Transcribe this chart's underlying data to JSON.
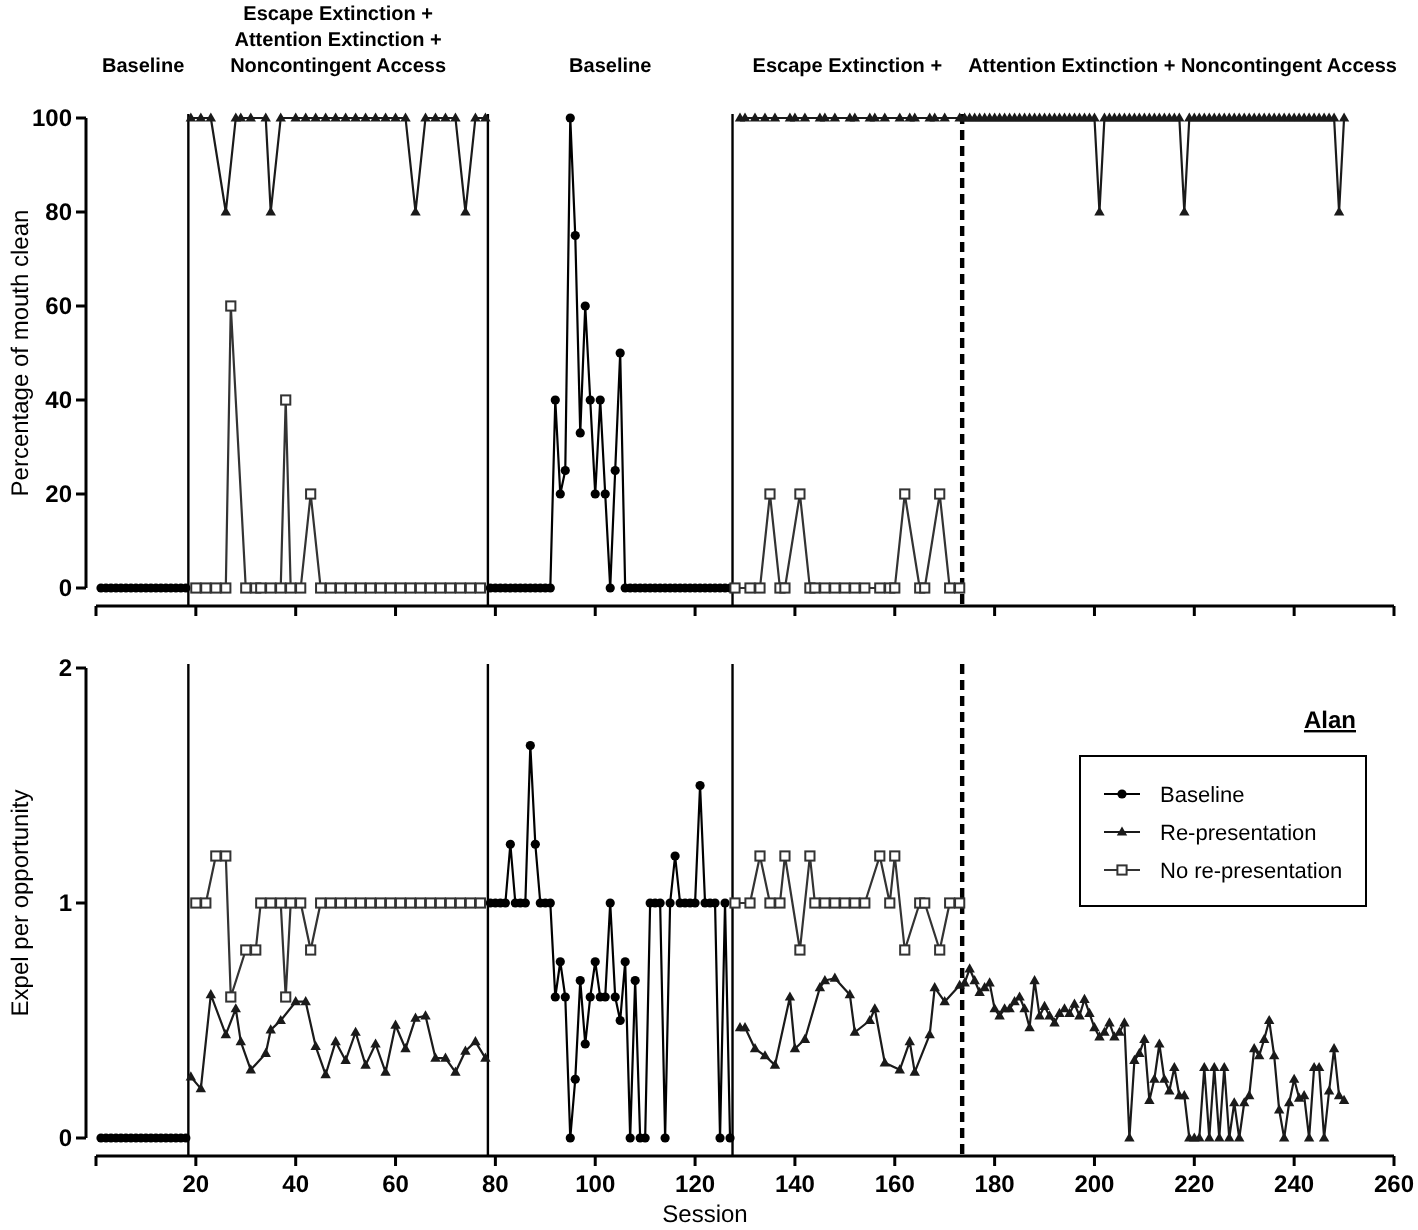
{
  "chart_data": [
    {
      "type": "line",
      "ylabel": "Percentage of mouth clean",
      "xlim": [
        0,
        260
      ],
      "xticks": [
        {
          "value": 0,
          "label": null
        },
        20,
        40,
        60,
        80,
        100,
        120,
        140,
        160,
        180,
        200,
        220,
        240,
        260
      ],
      "ylim": [
        0,
        100
      ],
      "yticks": [
        0,
        20,
        40,
        60,
        80,
        100
      ],
      "tick_labels": "y",
      "annotations": [
        "Baseline",
        "Escape Extinction +\nAttention Extinction +\nNoncontingent Access",
        "Baseline",
        "Escape Extinction +",
        "Attention Extinction + Noncontingent Access"
      ],
      "ref_lines": [
        {
          "axis": "x",
          "value": 18.5
        },
        {
          "axis": "x",
          "value": 78.5
        },
        {
          "axis": "x",
          "value": 127.5
        },
        {
          "axis": "x",
          "value": 173.5,
          "line_style": "dashed"
        }
      ],
      "series": [
        {
          "color": "#000000",
          "marker": "circle",
          "x": [
            1,
            2,
            3,
            4,
            5,
            6,
            7,
            8,
            9,
            10,
            11,
            12,
            13,
            14,
            15,
            16,
            17,
            18,
            50,
            79,
            80,
            81,
            82,
            83,
            84,
            85,
            86,
            87,
            88,
            89,
            90,
            91,
            92,
            93,
            94,
            95,
            96,
            97,
            98,
            99,
            100,
            101,
            102,
            103,
            104,
            105,
            106,
            107,
            108,
            109,
            110,
            111,
            112,
            113,
            114,
            115,
            116,
            117,
            118,
            119,
            120,
            121,
            122,
            123,
            124,
            125,
            126,
            127
          ],
          "values": [
            0,
            0,
            0,
            0,
            0,
            0,
            0,
            0,
            0,
            0,
            0,
            0,
            0,
            0,
            0,
            0,
            0,
            0,
            null,
            0,
            0,
            0,
            0,
            0,
            0,
            0,
            0,
            0,
            0,
            0,
            0,
            0,
            40,
            20,
            25,
            100,
            75,
            33,
            60,
            40,
            20,
            40,
            20,
            0,
            25,
            50,
            0,
            0,
            0,
            0,
            0,
            0,
            0,
            0,
            0,
            0,
            0,
            0,
            0,
            0,
            0,
            0,
            0,
            0,
            0,
            0,
            0,
            0
          ]
        },
        {
          "color": "#1a1a1a",
          "marker": "triangle",
          "x": [
            19,
            21,
            23,
            26,
            28,
            29,
            31,
            34,
            35,
            37,
            40,
            42,
            44,
            46,
            48,
            50,
            52,
            54,
            56,
            58,
            60,
            62,
            64,
            66,
            68,
            70,
            72,
            74,
            76,
            78,
            100,
            129,
            130,
            132,
            134,
            136,
            139,
            140,
            142,
            145,
            146,
            148,
            151,
            152,
            155,
            156,
            158,
            161,
            163,
            164,
            167,
            168,
            170,
            173,
            174,
            175,
            176,
            177,
            178,
            179,
            180,
            181,
            182,
            183,
            184,
            185,
            186,
            187,
            188,
            189,
            190,
            191,
            192,
            193,
            194,
            195,
            196,
            197,
            198,
            199,
            200,
            201,
            202,
            203,
            204,
            205,
            206,
            207,
            208,
            209,
            210,
            211,
            212,
            213,
            214,
            215,
            216,
            217,
            218,
            219,
            220,
            221,
            222,
            223,
            224,
            225,
            226,
            227,
            228,
            229,
            230,
            231,
            232,
            233,
            234,
            235,
            236,
            237,
            238,
            239,
            240,
            241,
            242,
            243,
            244,
            245,
            246,
            247,
            248,
            249,
            250
          ],
          "values": [
            100,
            100,
            100,
            80,
            100,
            100,
            100,
            100,
            80,
            100,
            100,
            100,
            100,
            100,
            100,
            100,
            100,
            100,
            100,
            100,
            100,
            100,
            80,
            100,
            100,
            100,
            100,
            80,
            100,
            100,
            null,
            100,
            100,
            100,
            100,
            100,
            100,
            100,
            100,
            100,
            100,
            100,
            100,
            100,
            100,
            100,
            100,
            100,
            100,
            100,
            100,
            100,
            100,
            100,
            100,
            100,
            100,
            100,
            100,
            100,
            100,
            100,
            100,
            100,
            100,
            100,
            100,
            100,
            100,
            100,
            100,
            100,
            100,
            100,
            100,
            100,
            100,
            100,
            100,
            100,
            100,
            80,
            100,
            100,
            100,
            100,
            100,
            100,
            100,
            100,
            100,
            100,
            100,
            100,
            100,
            100,
            100,
            100,
            80,
            100,
            100,
            100,
            100,
            100,
            100,
            100,
            100,
            100,
            100,
            100,
            100,
            100,
            100,
            100,
            100,
            100,
            100,
            100,
            100,
            100,
            100,
            100,
            100,
            100,
            100,
            100,
            100,
            100,
            100,
            80,
            100
          ]
        },
        {
          "color": "#333333",
          "marker": "square",
          "x": [
            20,
            22,
            24,
            26,
            27,
            30,
            32,
            33,
            35,
            37,
            38,
            39,
            41,
            43,
            45,
            47,
            49,
            51,
            53,
            55,
            57,
            59,
            61,
            63,
            65,
            67,
            69,
            71,
            73,
            75,
            77,
            100,
            128,
            131,
            133,
            135,
            137,
            138,
            141,
            143,
            144,
            146,
            148,
            150,
            152,
            154,
            157,
            159,
            160,
            162,
            165,
            166,
            169,
            171,
            173
          ],
          "values": [
            0,
            0,
            0,
            0,
            60,
            0,
            0,
            0,
            0,
            0,
            40,
            0,
            0,
            20,
            0,
            0,
            0,
            0,
            0,
            0,
            0,
            0,
            0,
            0,
            0,
            0,
            0,
            0,
            0,
            0,
            0,
            null,
            0,
            0,
            0,
            20,
            0,
            0,
            20,
            0,
            0,
            0,
            0,
            0,
            0,
            0,
            0,
            0,
            0,
            20,
            0,
            0,
            20,
            0,
            0
          ]
        }
      ]
    },
    {
      "type": "line",
      "ylabel": "Expel per opportunity",
      "xlabel": "Session",
      "xlim": [
        0,
        260
      ],
      "xticks": [
        {
          "value": 0,
          "label": null
        },
        20,
        40,
        60,
        80,
        100,
        120,
        140,
        160,
        180,
        200,
        220,
        240,
        260
      ],
      "ylim": [
        0,
        2
      ],
      "yticks": [
        0,
        1,
        2
      ],
      "legend": "right",
      "annotations": [
        "Alan"
      ],
      "ref_lines": [
        {
          "axis": "x",
          "value": 18.5
        },
        {
          "axis": "x",
          "value": 78.5
        },
        {
          "axis": "x",
          "value": 127.5
        },
        {
          "axis": "x",
          "value": 173.5,
          "line_style": "dashed"
        }
      ],
      "series": [
        {
          "name": "Baseline",
          "color": "#000000",
          "marker": "circle",
          "x": [
            1,
            2,
            3,
            4,
            5,
            6,
            7,
            8,
            9,
            10,
            11,
            12,
            13,
            14,
            15,
            16,
            17,
            18,
            50,
            79,
            80,
            81,
            82,
            83,
            84,
            85,
            86,
            87,
            88,
            89,
            90,
            91,
            92,
            93,
            94,
            95,
            96,
            97,
            98,
            99,
            100,
            101,
            102,
            103,
            104,
            105,
            106,
            107,
            108,
            109,
            110,
            111,
            112,
            113,
            114,
            115,
            116,
            117,
            118,
            119,
            120,
            121,
            122,
            123,
            124,
            125,
            126,
            127
          ],
          "values": [
            0,
            0,
            0,
            0,
            0,
            0,
            0,
            0,
            0,
            0,
            0,
            0,
            0,
            0,
            0,
            0,
            0,
            0,
            null,
            1,
            1,
            1,
            1,
            1.25,
            1,
            1,
            1,
            1.67,
            1.25,
            1,
            1,
            1,
            0.6,
            0.75,
            0.6,
            0,
            0.25,
            0.67,
            0.4,
            0.6,
            0.75,
            0.6,
            0.6,
            1,
            0.6,
            0.5,
            0.75,
            0,
            0.67,
            0,
            0,
            1,
            1,
            1,
            0,
            1,
            1.2,
            1,
            1,
            1,
            1,
            1.5,
            1,
            1,
            1,
            0,
            1,
            0
          ]
        },
        {
          "name": "Re-presentation",
          "color": "#1a1a1a",
          "marker": "triangle",
          "x": [
            19,
            21,
            23,
            26,
            28,
            29,
            31,
            34,
            35,
            37,
            40,
            42,
            44,
            46,
            48,
            50,
            52,
            54,
            56,
            58,
            60,
            62,
            64,
            66,
            68,
            70,
            72,
            74,
            76,
            78,
            100,
            129,
            130,
            132,
            134,
            136,
            139,
            140,
            142,
            145,
            146,
            148,
            151,
            152,
            155,
            156,
            158,
            161,
            163,
            164,
            167,
            168,
            170,
            173,
            174,
            175,
            176,
            177,
            178,
            179,
            180,
            181,
            182,
            183,
            184,
            185,
            186,
            187,
            188,
            189,
            190,
            191,
            192,
            193,
            194,
            195,
            196,
            197,
            198,
            199,
            200,
            201,
            202,
            203,
            204,
            205,
            206,
            207,
            208,
            209,
            210,
            211,
            212,
            213,
            214,
            215,
            216,
            217,
            218,
            219,
            220,
            221,
            222,
            223,
            224,
            225,
            226,
            227,
            228,
            229,
            230,
            231,
            232,
            233,
            234,
            235,
            236,
            237,
            238,
            239,
            240,
            241,
            242,
            243,
            244,
            245,
            246,
            247,
            248,
            249,
            250
          ],
          "values": [
            0.26,
            0.21,
            0.61,
            0.44,
            0.55,
            0.41,
            0.29,
            0.36,
            0.46,
            0.5,
            0.58,
            0.58,
            0.39,
            0.27,
            0.41,
            0.33,
            0.45,
            0.31,
            0.4,
            0.28,
            0.48,
            0.38,
            0.51,
            0.52,
            0.34,
            0.34,
            0.28,
            0.37,
            0.41,
            0.34,
            null,
            0.47,
            0.47,
            0.38,
            0.35,
            0.31,
            0.6,
            0.38,
            0.42,
            0.64,
            0.67,
            0.68,
            0.61,
            0.45,
            0.5,
            0.55,
            0.32,
            0.29,
            0.41,
            0.28,
            0.44,
            0.64,
            0.58,
            0.65,
            0.66,
            0.72,
            0.67,
            0.62,
            0.64,
            0.66,
            0.55,
            0.52,
            0.55,
            0.55,
            0.58,
            0.6,
            0.55,
            0.47,
            0.67,
            0.52,
            0.56,
            0.52,
            0.49,
            0.53,
            0.55,
            0.53,
            0.57,
            0.52,
            0.59,
            0.53,
            0.47,
            0.43,
            0.45,
            0.49,
            0.43,
            0.45,
            0.49,
            0,
            0.33,
            0.36,
            0.42,
            0.16,
            0.25,
            0.4,
            0.25,
            0.2,
            0.3,
            0.18,
            0.18,
            0,
            0,
            0,
            0.3,
            0,
            0.3,
            0,
            0.3,
            0,
            0.15,
            0,
            0.15,
            0.18,
            0.38,
            0.35,
            0.42,
            0.5,
            0.35,
            0.12,
            0,
            0.15,
            0.25,
            0.17,
            0.18,
            0,
            0.3,
            0.3,
            0,
            0.2,
            0.38,
            0.18,
            0.16
          ]
        },
        {
          "name": "No re-presentation",
          "color": "#333333",
          "marker": "square",
          "x": [
            20,
            22,
            24,
            26,
            27,
            30,
            32,
            33,
            35,
            37,
            38,
            39,
            41,
            43,
            45,
            47,
            49,
            51,
            53,
            55,
            57,
            59,
            61,
            63,
            65,
            67,
            69,
            71,
            73,
            75,
            77,
            100,
            128,
            131,
            133,
            135,
            137,
            138,
            141,
            143,
            144,
            146,
            148,
            150,
            152,
            154,
            157,
            159,
            160,
            162,
            165,
            166,
            169,
            171,
            173
          ],
          "values": [
            1,
            1,
            1.2,
            1.2,
            0.6,
            0.8,
            0.8,
            1,
            1,
            1,
            0.6,
            1,
            1,
            0.8,
            1,
            1,
            1,
            1,
            1,
            1,
            1,
            1,
            1,
            1,
            1,
            1,
            1,
            1,
            1,
            1,
            1,
            null,
            1,
            1,
            1.2,
            1,
            1,
            1.2,
            0.8,
            1.2,
            1,
            1,
            1,
            1,
            1,
            1,
            1.2,
            1,
            1.2,
            0.8,
            1,
            1,
            0.8,
            1,
            1
          ]
        }
      ]
    }
  ]
}
